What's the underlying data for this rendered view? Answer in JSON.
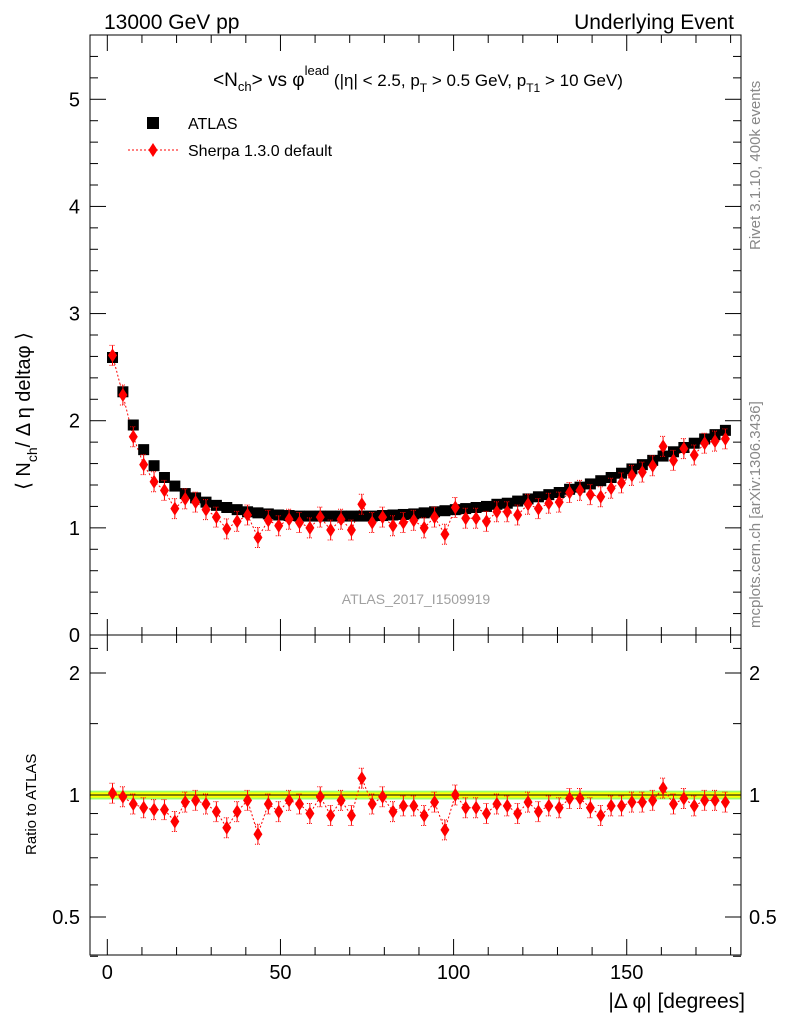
{
  "header": {
    "left": "13000 GeV pp",
    "right": "Underlying Event"
  },
  "side_text": {
    "rivet": "Rivet 3.1.10,  400k events",
    "mcplots": "mcplots.cern.ch [arXiv:1306.3436]"
  },
  "analysis_id": "ATLAS_2017_I1509919",
  "colors": {
    "data": "#000000",
    "mc": "#ff0000",
    "band_inner": "#ffff00",
    "band_outer": "#99ff66"
  },
  "chart_data": [
    {
      "type": "scatter",
      "panel": "main",
      "title_parts": {
        "a": "<N",
        "a_sub": "ch",
        "b": "> vs φ",
        "b_sup": "lead",
        "c": " (|η| < 2.5, p",
        "c_sub": "T",
        "d": " > 0.5 GeV, p",
        "d_sub": "T1",
        "e": " > 10 GeV)"
      },
      "ylabel": "⟨ N_ch / Δ η deltaφ ⟩",
      "ylabel_parts": {
        "pre": "⟨ N",
        "sub": "ch",
        "post": "/ Δ η deltaφ ⟩"
      },
      "xlim": [
        -5,
        183
      ],
      "ylim": [
        0,
        5.6
      ],
      "yticks": [
        0,
        1,
        2,
        3,
        4,
        5
      ],
      "ytick_labels": [
        "0",
        "1",
        "2",
        "3",
        "4",
        "5"
      ],
      "legend": {
        "placement": "top-left",
        "entries": [
          "ATLAS",
          "Sherpa 1.3.0 default"
        ]
      },
      "x": [
        1.5,
        4.5,
        7.5,
        10.5,
        13.5,
        16.5,
        19.5,
        22.5,
        25.5,
        28.5,
        31.5,
        34.5,
        37.5,
        40.5,
        43.5,
        46.5,
        49.5,
        52.5,
        55.5,
        58.5,
        61.5,
        64.5,
        67.5,
        70.5,
        73.5,
        76.5,
        79.5,
        82.5,
        85.5,
        88.5,
        91.5,
        94.5,
        97.5,
        100.5,
        103.5,
        106.5,
        109.5,
        112.5,
        115.5,
        118.5,
        121.5,
        124.5,
        127.5,
        130.5,
        133.5,
        136.5,
        139.5,
        142.5,
        145.5,
        148.5,
        151.5,
        154.5,
        157.5,
        160.5,
        163.5,
        166.5,
        169.5,
        172.5,
        175.5,
        178.5
      ],
      "series": [
        {
          "name": "ATLAS",
          "values": [
            2.59,
            2.27,
            1.96,
            1.73,
            1.58,
            1.47,
            1.39,
            1.32,
            1.28,
            1.24,
            1.21,
            1.19,
            1.17,
            1.15,
            1.14,
            1.13,
            1.12,
            1.115,
            1.11,
            1.11,
            1.11,
            1.11,
            1.11,
            1.11,
            1.11,
            1.11,
            1.115,
            1.12,
            1.125,
            1.13,
            1.14,
            1.15,
            1.16,
            1.17,
            1.18,
            1.19,
            1.2,
            1.22,
            1.23,
            1.25,
            1.27,
            1.29,
            1.31,
            1.33,
            1.36,
            1.38,
            1.41,
            1.44,
            1.47,
            1.51,
            1.55,
            1.59,
            1.63,
            1.67,
            1.71,
            1.75,
            1.79,
            1.83,
            1.87,
            1.91
          ]
        },
        {
          "name": "Sherpa 1.3.0 default",
          "values": [
            2.61,
            2.24,
            1.85,
            1.59,
            1.43,
            1.35,
            1.18,
            1.27,
            1.24,
            1.17,
            1.1,
            0.99,
            1.06,
            1.12,
            0.91,
            1.07,
            1.02,
            1.08,
            1.05,
            1.0,
            1.1,
            0.98,
            1.08,
            0.98,
            1.22,
            1.05,
            1.1,
            1.02,
            1.05,
            1.07,
            1.0,
            1.1,
            0.94,
            1.19,
            1.09,
            1.09,
            1.06,
            1.15,
            1.15,
            1.12,
            1.22,
            1.18,
            1.23,
            1.24,
            1.33,
            1.35,
            1.31,
            1.29,
            1.37,
            1.42,
            1.49,
            1.52,
            1.58,
            1.76,
            1.63,
            1.74,
            1.68,
            1.79,
            1.81,
            1.83
          ]
        }
      ]
    },
    {
      "type": "scatter",
      "panel": "ratio",
      "ylabel": "Ratio to ATLAS",
      "xlabel": "|Δ φ| [degrees]",
      "xlim": [
        -5,
        183
      ],
      "ylim": [
        0.35,
        2.4
      ],
      "xticks": [
        0,
        50,
        100,
        150
      ],
      "xtick_labels": [
        "0",
        "50",
        "100",
        "150"
      ],
      "yticks": [
        0.5,
        1,
        2
      ],
      "ytick_labels": [
        "0.5",
        "1",
        "2"
      ],
      "band": {
        "inner": [
          0.985,
          1.015
        ],
        "outer": [
          0.975,
          1.025
        ]
      },
      "series": [
        {
          "name": "Sherpa 1.3.0 default",
          "values": [
            1.01,
            0.99,
            0.95,
            0.93,
            0.92,
            0.92,
            0.86,
            0.96,
            0.97,
            0.95,
            0.91,
            0.83,
            0.91,
            0.97,
            0.8,
            0.95,
            0.91,
            0.97,
            0.95,
            0.9,
            0.99,
            0.89,
            0.97,
            0.89,
            1.1,
            0.95,
            0.99,
            0.91,
            0.94,
            0.94,
            0.89,
            0.96,
            0.82,
            1.0,
            0.93,
            0.93,
            0.9,
            0.95,
            0.94,
            0.9,
            0.96,
            0.91,
            0.94,
            0.93,
            0.98,
            0.98,
            0.93,
            0.89,
            0.94,
            0.94,
            0.96,
            0.96,
            0.97,
            1.04,
            0.95,
            0.98,
            0.94,
            0.97,
            0.97,
            0.96
          ]
        }
      ]
    }
  ]
}
